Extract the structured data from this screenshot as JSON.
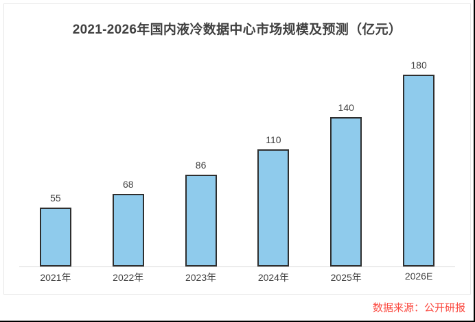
{
  "title": "2021-2026年国内液冷数据中心市场规模及预测（亿元）",
  "source_note": "数据来源：公开研报",
  "colors": {
    "bar_fill": "#8FCBEC",
    "bar_border": "#2E2E2E",
    "title_text": "#404040",
    "label_text": "#404040",
    "axis_line": "#D9D9D9",
    "source_text": "#FB4B42",
    "card_border": "#E8E8E8"
  },
  "chart_data": {
    "type": "bar",
    "title": "2021-2026年国内液冷数据中心市场规模及预测（亿元）",
    "categories": [
      "2021年",
      "2022年",
      "2023年",
      "2024年",
      "2025年",
      "2026E"
    ],
    "values": [
      55,
      68,
      86,
      110,
      140,
      180
    ],
    "unit": "亿元",
    "xlabel": "",
    "ylabel": "",
    "ylim": [
      0,
      193
    ],
    "grid": false,
    "legend": false,
    "data_labels": true,
    "source": "数据来源：公开研报"
  }
}
